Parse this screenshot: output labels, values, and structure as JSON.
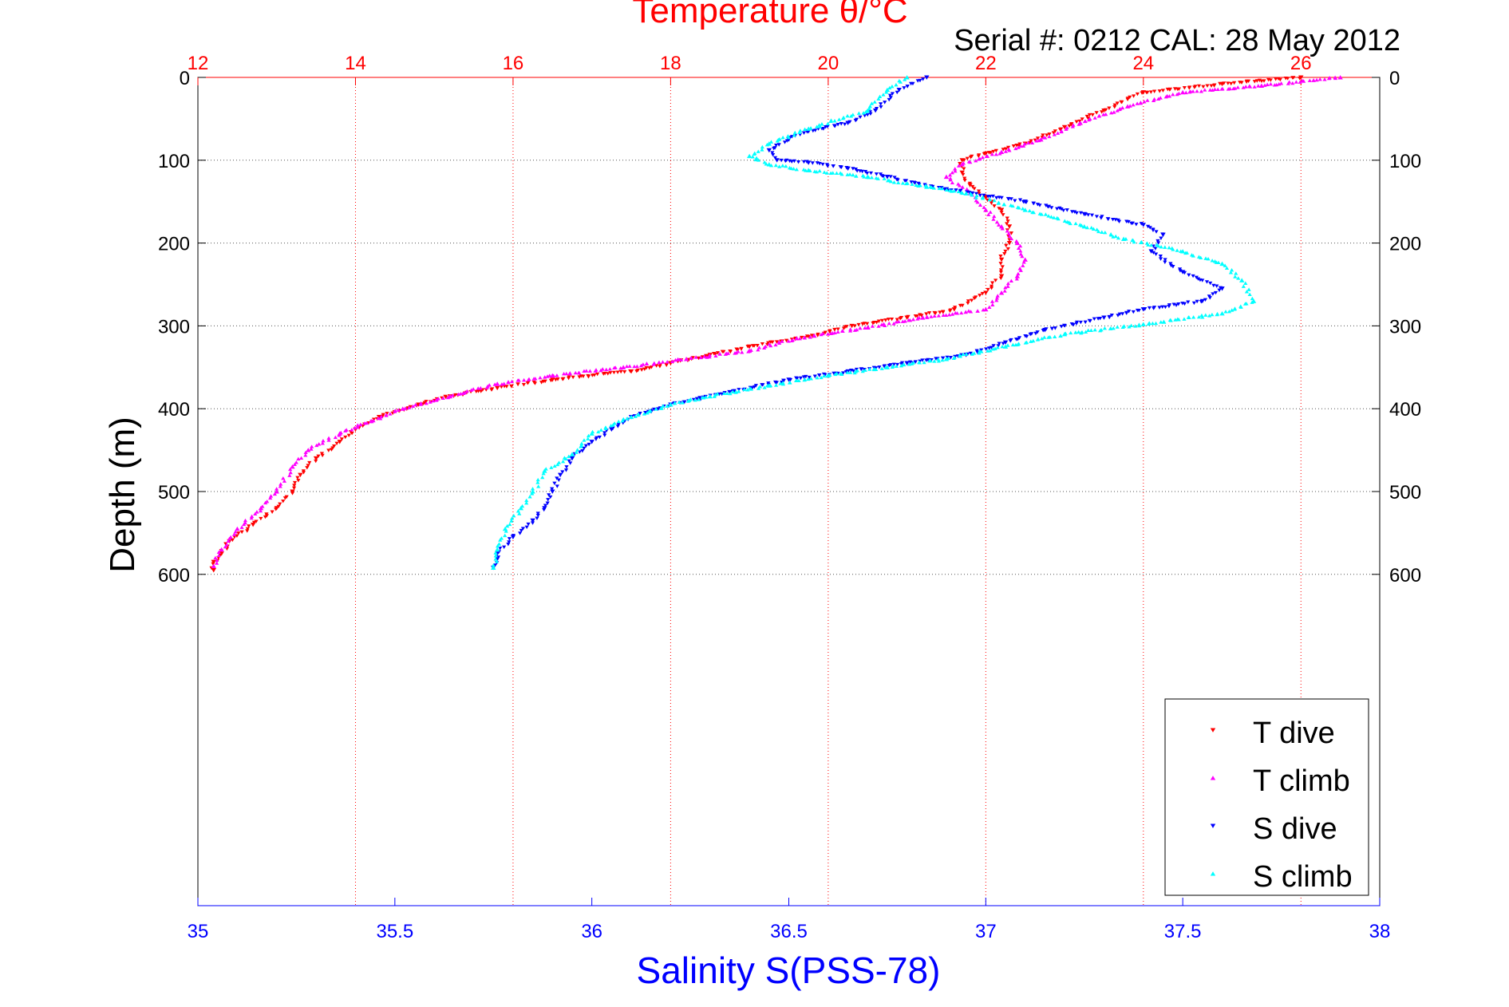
{
  "chart_data": {
    "type": "scatter",
    "title": "Temperature θ/°C",
    "subtitle": "Serial #: 0212  CAL: 28 May 2012",
    "ylabel": "Depth (m)",
    "xlabel_bottom": "Salinity S(PSS-78)",
    "temperature_axis": {
      "range": [
        12,
        27
      ],
      "ticks": [
        12,
        14,
        16,
        18,
        20,
        22,
        24,
        26
      ],
      "tick_labels": [
        "12",
        "14",
        "16",
        "18",
        "20",
        "22",
        "24",
        "26"
      ],
      "color": "#ff0000"
    },
    "salinity_axis": {
      "range": [
        35,
        38
      ],
      "ticks": [
        35,
        35.5,
        36,
        36.5,
        37,
        37.5,
        38
      ],
      "tick_labels": [
        "35",
        "35.5",
        "36",
        "36.5",
        "37",
        "37.5",
        "38"
      ],
      "color": "#0000ff"
    },
    "depth_axis": {
      "range": [
        0,
        1000
      ],
      "reversed": true,
      "ticks": [
        0,
        100,
        200,
        300,
        400,
        500,
        600
      ],
      "tick_labels": [
        "0",
        "100",
        "200",
        "300",
        "400",
        "500",
        "600"
      ]
    },
    "grid": true,
    "legend_position": "bottom-right",
    "series": [
      {
        "name": "T dive",
        "axis": "temperature",
        "color": "#ff0000",
        "marker": "triangle-down",
        "points": [
          [
            26.0,
            0
          ],
          [
            25.0,
            8
          ],
          [
            24.0,
            18
          ],
          [
            23.5,
            40
          ],
          [
            23.0,
            60
          ],
          [
            22.5,
            80
          ],
          [
            22.0,
            92
          ],
          [
            21.7,
            100
          ],
          [
            21.7,
            115
          ],
          [
            21.8,
            130
          ],
          [
            22.0,
            145
          ],
          [
            22.2,
            160
          ],
          [
            22.3,
            180
          ],
          [
            22.3,
            200
          ],
          [
            22.2,
            220
          ],
          [
            22.2,
            240
          ],
          [
            22.0,
            260
          ],
          [
            21.6,
            280
          ],
          [
            21.0,
            290
          ],
          [
            20.3,
            300
          ],
          [
            19.8,
            312
          ],
          [
            19.0,
            325
          ],
          [
            18.5,
            335
          ],
          [
            18.0,
            345
          ],
          [
            17.5,
            355
          ],
          [
            16.5,
            365
          ],
          [
            15.8,
            375
          ],
          [
            15.2,
            385
          ],
          [
            14.8,
            395
          ],
          [
            14.3,
            410
          ],
          [
            14.0,
            425
          ],
          [
            13.8,
            440
          ],
          [
            13.5,
            460
          ],
          [
            13.3,
            480
          ],
          [
            13.2,
            500
          ],
          [
            13.0,
            520
          ],
          [
            12.7,
            540
          ],
          [
            12.4,
            560
          ],
          [
            12.3,
            575
          ],
          [
            12.2,
            585
          ],
          [
            12.2,
            595
          ]
        ]
      },
      {
        "name": "T climb",
        "axis": "temperature",
        "color": "#ff00ff",
        "marker": "triangle-up",
        "points": [
          [
            26.5,
            0
          ],
          [
            25.5,
            10
          ],
          [
            24.5,
            18
          ],
          [
            23.8,
            35
          ],
          [
            23.2,
            55
          ],
          [
            22.7,
            75
          ],
          [
            22.2,
            90
          ],
          [
            21.7,
            105
          ],
          [
            21.5,
            120
          ],
          [
            21.8,
            140
          ],
          [
            22.0,
            160
          ],
          [
            22.2,
            180
          ],
          [
            22.4,
            200
          ],
          [
            22.5,
            220
          ],
          [
            22.4,
            240
          ],
          [
            22.2,
            260
          ],
          [
            22.0,
            280
          ],
          [
            21.2,
            290
          ],
          [
            20.5,
            302
          ],
          [
            19.6,
            315
          ],
          [
            19.0,
            330
          ],
          [
            18.2,
            340
          ],
          [
            17.4,
            350
          ],
          [
            16.5,
            360
          ],
          [
            15.8,
            370
          ],
          [
            15.2,
            385
          ],
          [
            14.6,
            400
          ],
          [
            14.2,
            415
          ],
          [
            13.8,
            430
          ],
          [
            13.4,
            450
          ],
          [
            13.2,
            470
          ],
          [
            13.0,
            500
          ],
          [
            12.8,
            520
          ],
          [
            12.5,
            545
          ],
          [
            12.3,
            570
          ],
          [
            12.2,
            590
          ]
        ]
      },
      {
        "name": "S dive",
        "axis": "salinity",
        "color": "#0000ff",
        "marker": "triangle-down",
        "points": [
          [
            36.85,
            0
          ],
          [
            36.78,
            15
          ],
          [
            36.72,
            40
          ],
          [
            36.65,
            55
          ],
          [
            36.55,
            65
          ],
          [
            36.5,
            75
          ],
          [
            36.45,
            88
          ],
          [
            36.47,
            100
          ],
          [
            36.55,
            103
          ],
          [
            36.65,
            110
          ],
          [
            36.75,
            120
          ],
          [
            36.9,
            135
          ],
          [
            37.1,
            150
          ],
          [
            37.25,
            165
          ],
          [
            37.4,
            178
          ],
          [
            37.45,
            190
          ],
          [
            37.42,
            210
          ],
          [
            37.5,
            235
          ],
          [
            37.6,
            255
          ],
          [
            37.55,
            270
          ],
          [
            37.4,
            280
          ],
          [
            37.3,
            290
          ],
          [
            37.15,
            305
          ],
          [
            37.05,
            320
          ],
          [
            36.95,
            335
          ],
          [
            36.8,
            345
          ],
          [
            36.65,
            355
          ],
          [
            36.5,
            365
          ],
          [
            36.35,
            380
          ],
          [
            36.2,
            395
          ],
          [
            36.1,
            410
          ],
          [
            36.05,
            425
          ],
          [
            36.0,
            440
          ],
          [
            35.95,
            460
          ],
          [
            35.92,
            480
          ],
          [
            35.9,
            500
          ],
          [
            35.88,
            520
          ],
          [
            35.85,
            535
          ],
          [
            35.8,
            555
          ],
          [
            35.76,
            575
          ],
          [
            35.75,
            592
          ]
        ]
      },
      {
        "name": "S climb",
        "axis": "salinity",
        "color": "#00ffff",
        "marker": "triangle-up",
        "points": [
          [
            36.8,
            0
          ],
          [
            36.75,
            15
          ],
          [
            36.7,
            40
          ],
          [
            36.55,
            62
          ],
          [
            36.45,
            80
          ],
          [
            36.4,
            95
          ],
          [
            36.45,
            105
          ],
          [
            36.55,
            112
          ],
          [
            36.7,
            120
          ],
          [
            36.85,
            132
          ],
          [
            36.95,
            140
          ],
          [
            37.1,
            160
          ],
          [
            37.25,
            180
          ],
          [
            37.35,
            195
          ],
          [
            37.5,
            210
          ],
          [
            37.6,
            225
          ],
          [
            37.65,
            245
          ],
          [
            37.68,
            270
          ],
          [
            37.6,
            285
          ],
          [
            37.4,
            298
          ],
          [
            37.2,
            310
          ],
          [
            37.05,
            325
          ],
          [
            36.9,
            340
          ],
          [
            36.75,
            350
          ],
          [
            36.6,
            360
          ],
          [
            36.45,
            372
          ],
          [
            36.3,
            385
          ],
          [
            36.2,
            395
          ],
          [
            36.1,
            410
          ],
          [
            36.0,
            430
          ],
          [
            35.95,
            455
          ],
          [
            35.88,
            475
          ],
          [
            35.85,
            500
          ],
          [
            35.82,
            520
          ],
          [
            35.78,
            545
          ],
          [
            35.76,
            570
          ],
          [
            35.75,
            592
          ]
        ]
      }
    ]
  }
}
